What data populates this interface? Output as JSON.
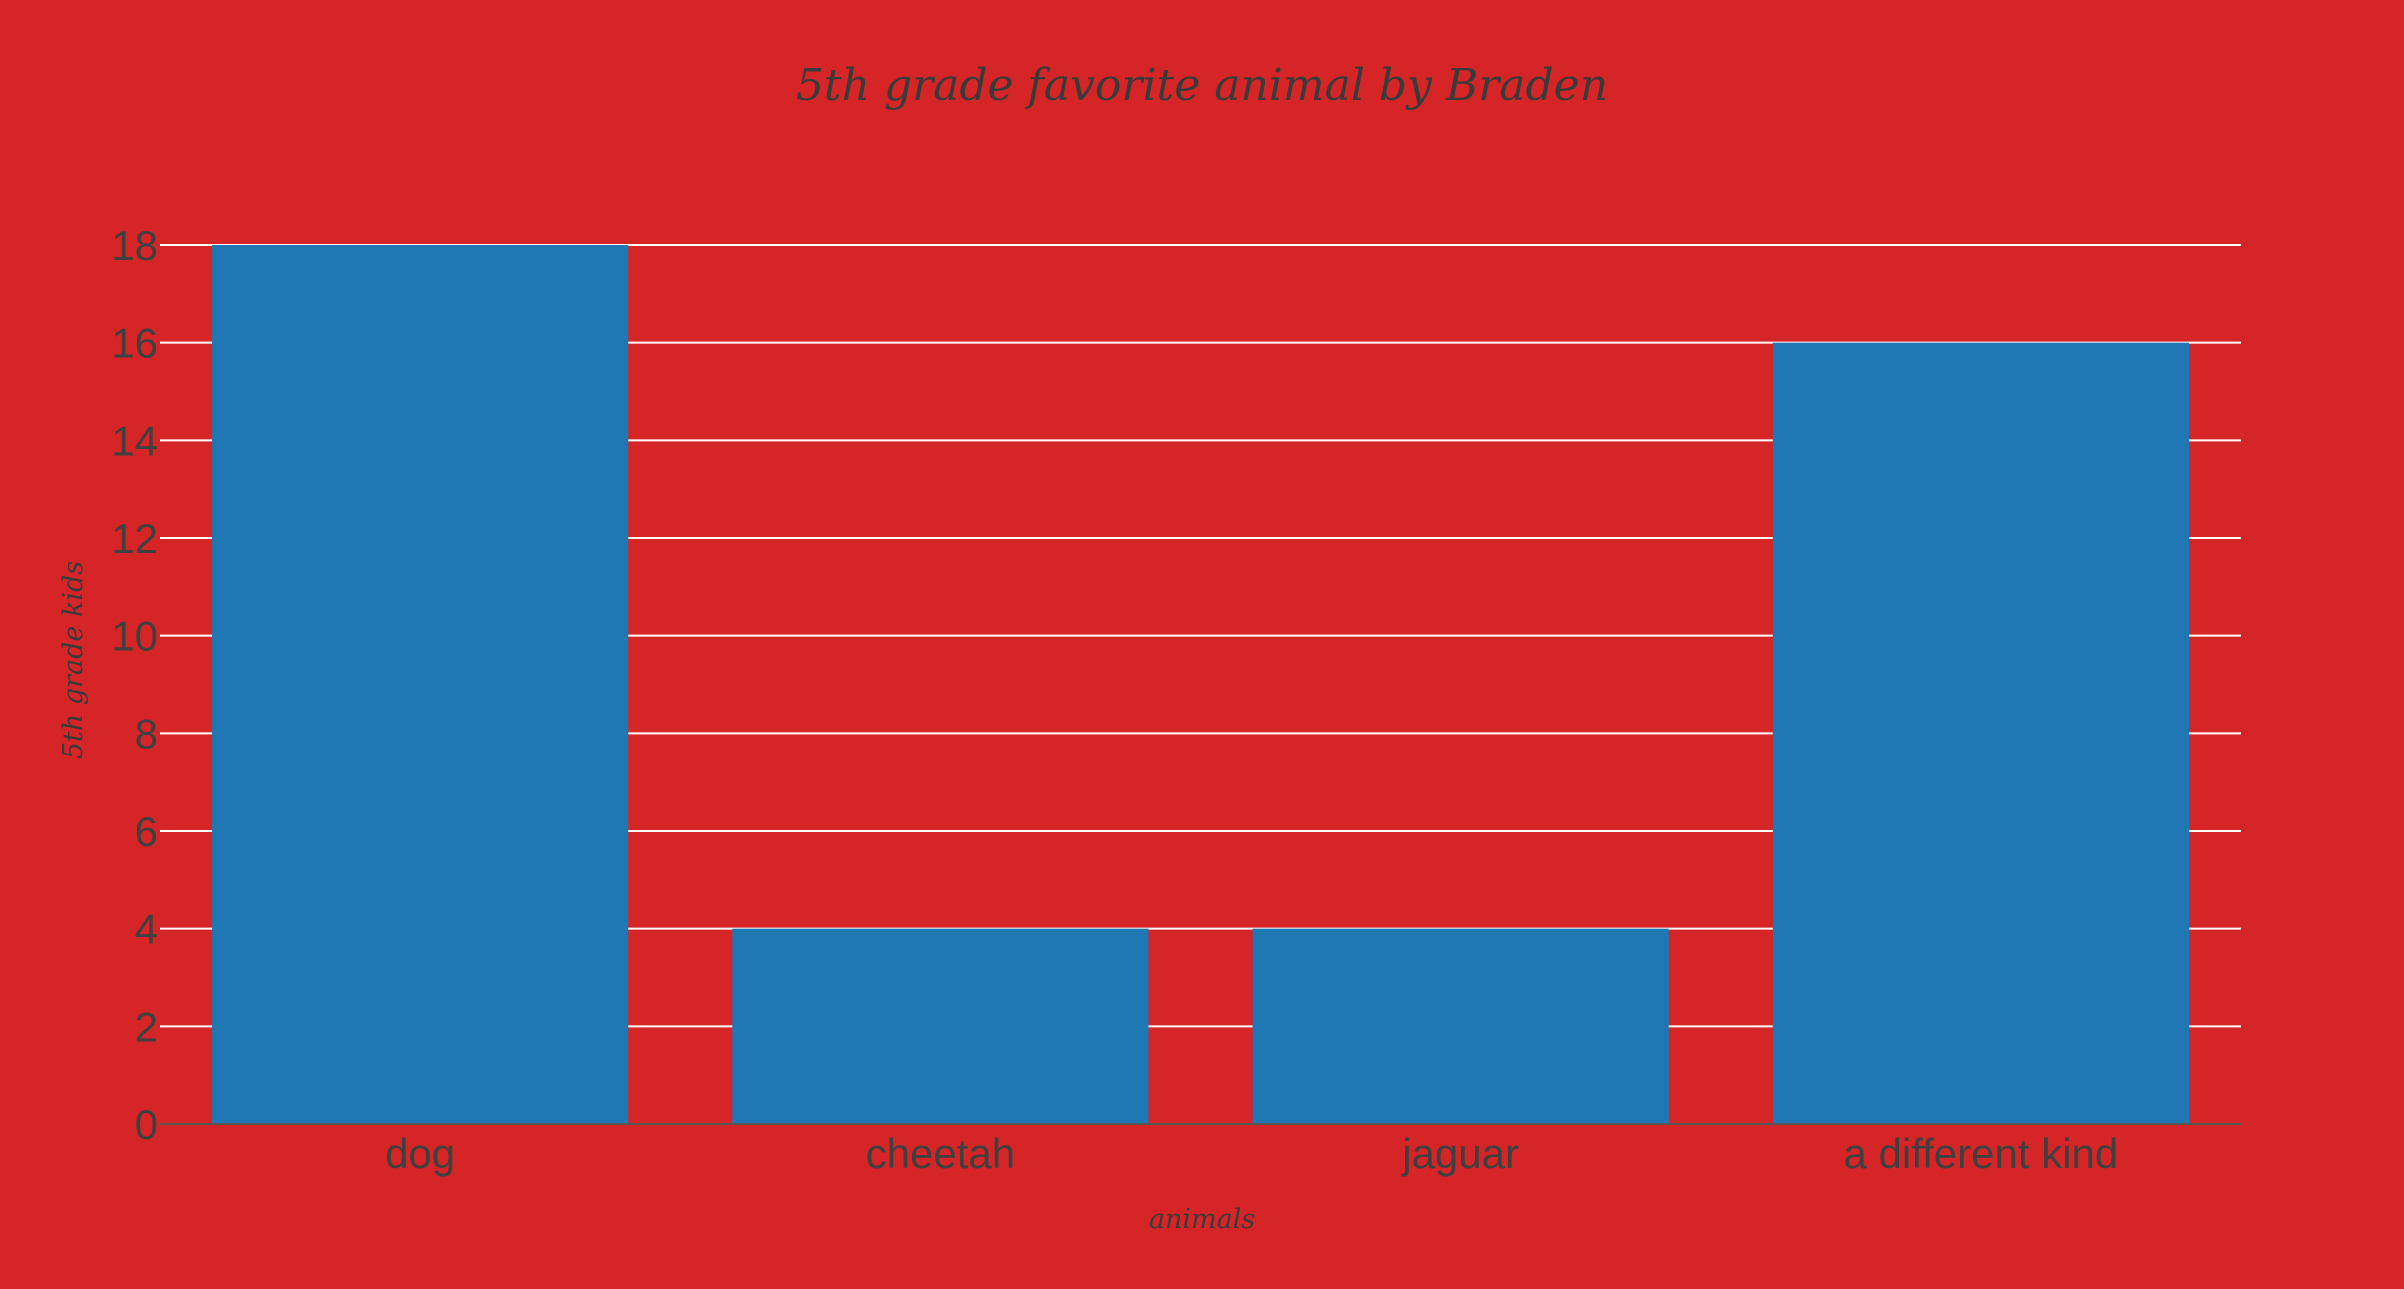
{
  "chart_data": {
    "type": "bar",
    "title": "5th grade  favorite animal by Braden",
    "xlabel": "animals",
    "ylabel": "5th grade kids",
    "categories": [
      "dog",
      "cheetah",
      "jaguar",
      "a different kind"
    ],
    "values": [
      18,
      4,
      4,
      16
    ],
    "ylim": [
      0,
      18
    ],
    "yticks": [
      0,
      2,
      4,
      6,
      8,
      10,
      12,
      14,
      16,
      18
    ],
    "grid": true,
    "legend": "none",
    "colors": {
      "background": "#d52527",
      "bar": "#1f77b4",
      "grid": "#ffffff",
      "text": "#3f3f3f"
    }
  }
}
